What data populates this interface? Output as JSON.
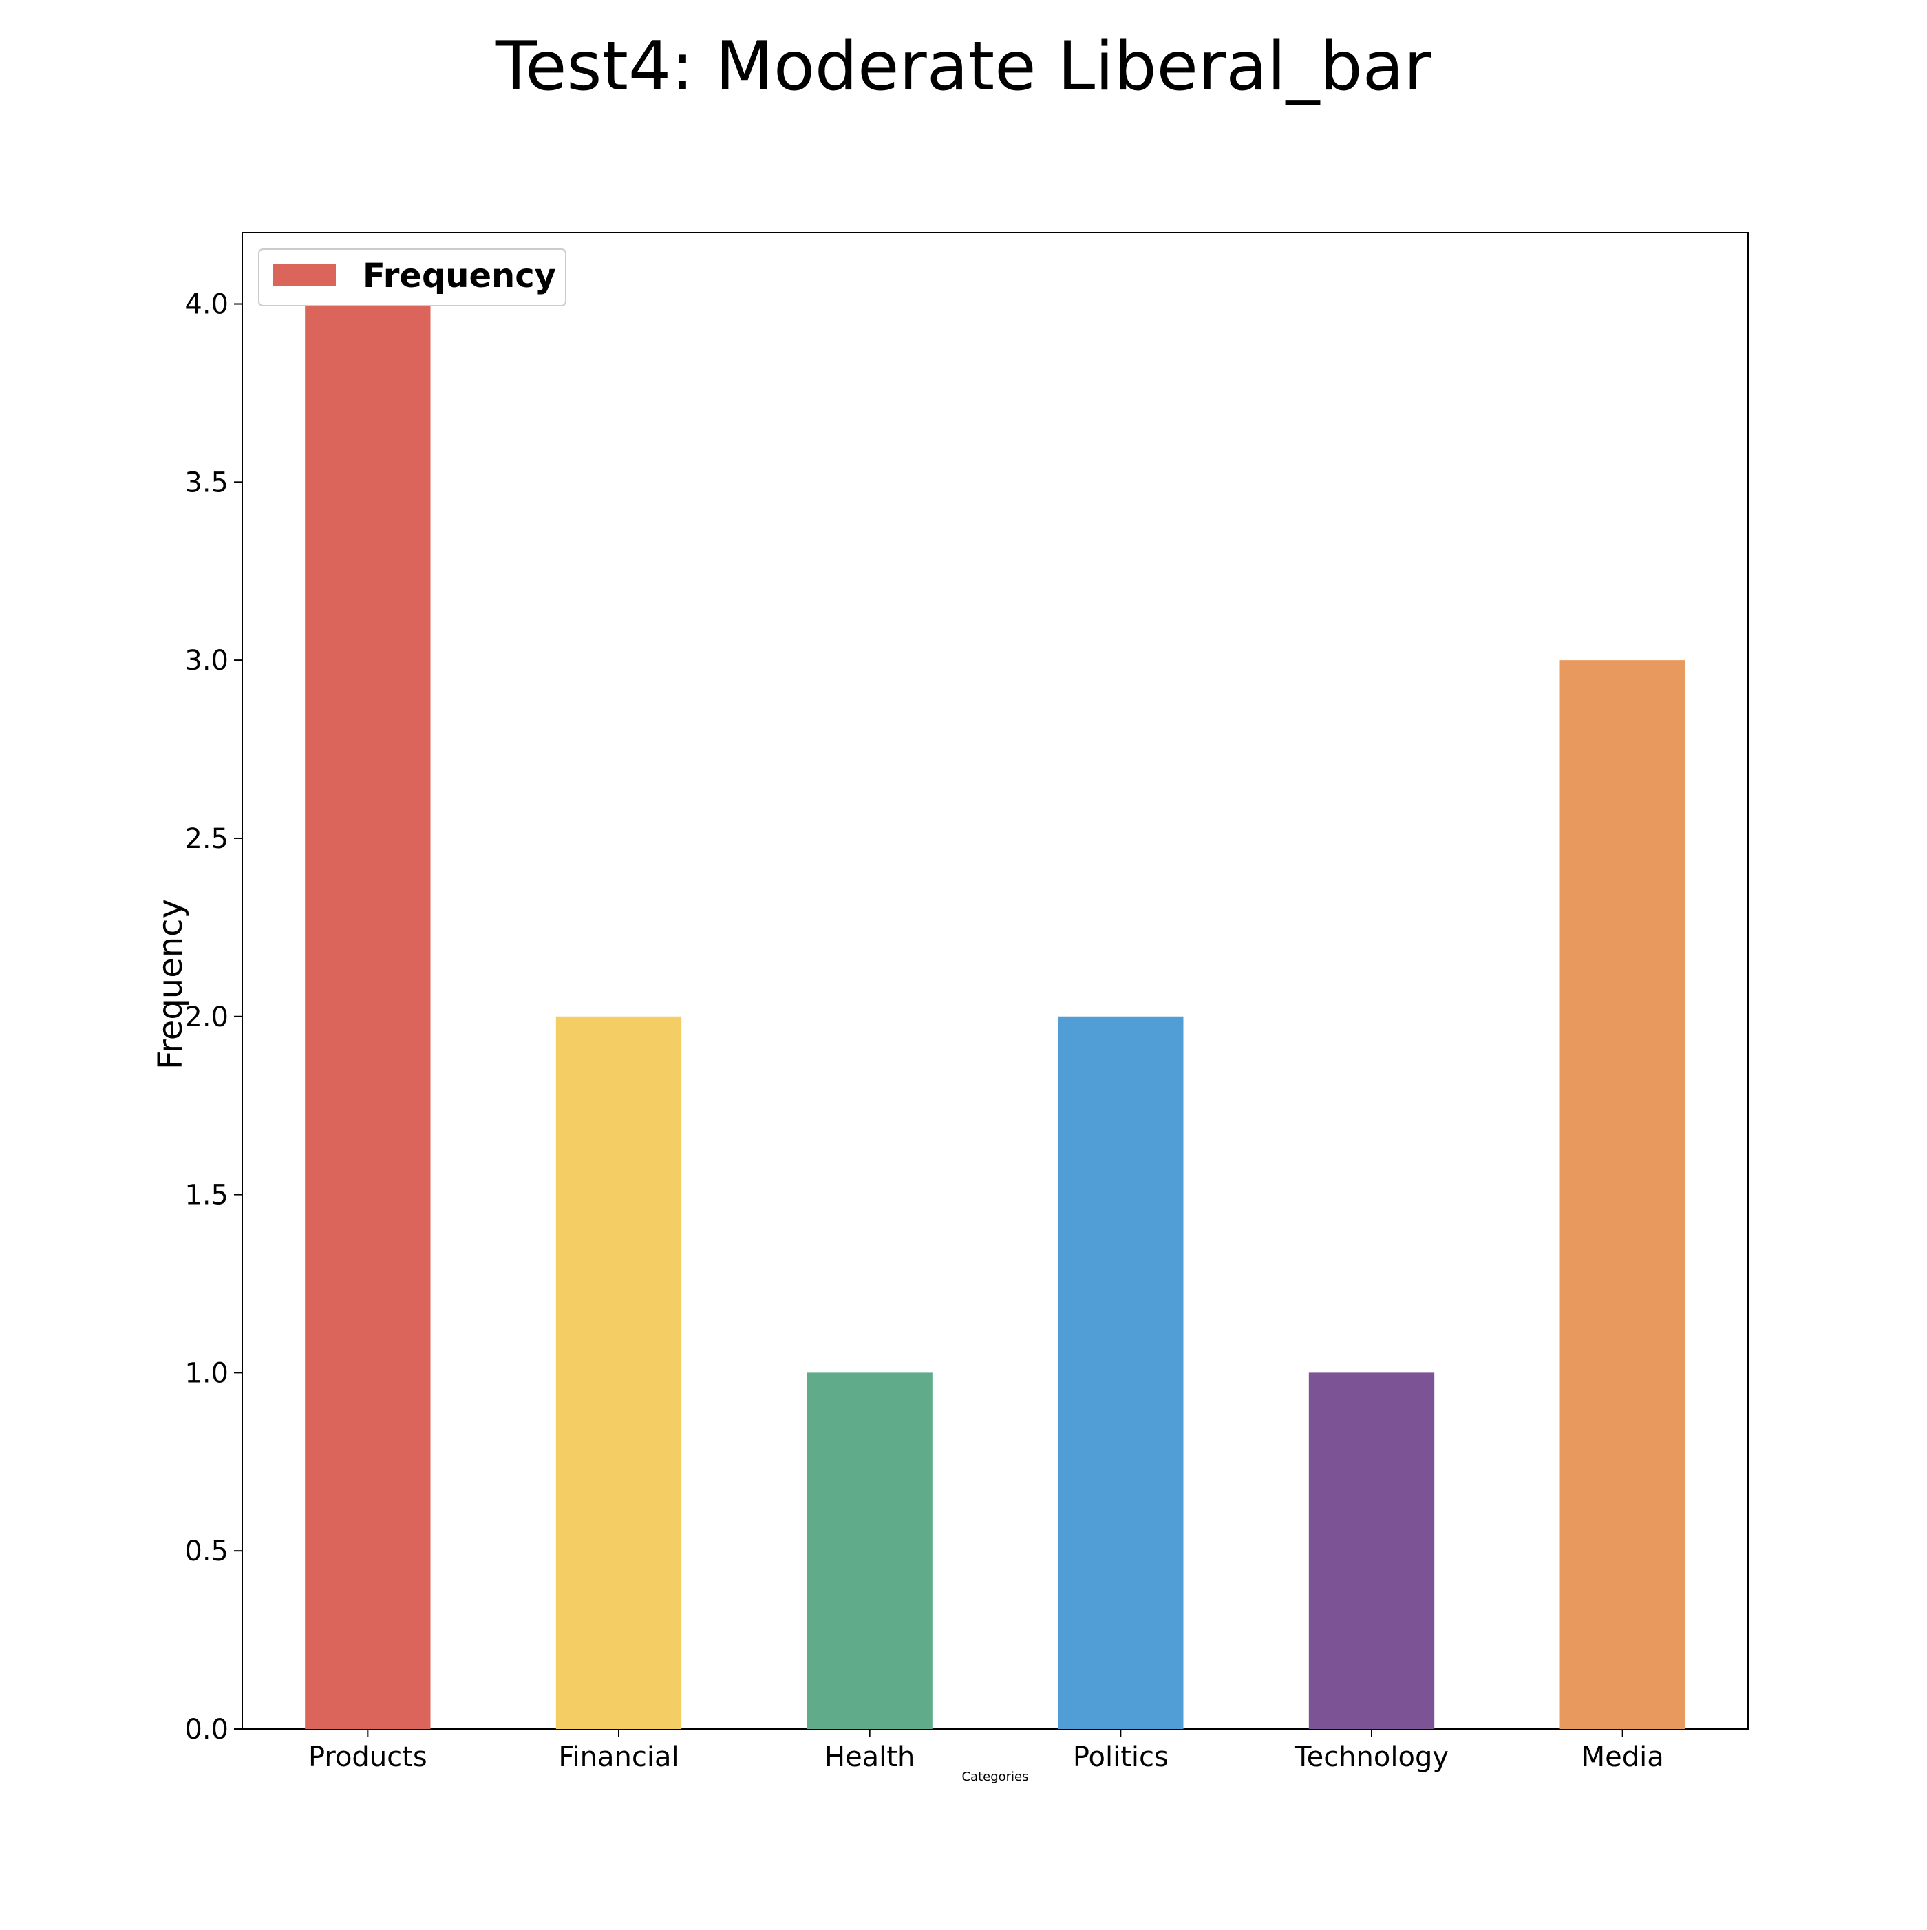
{
  "chart_data": {
    "type": "bar",
    "title": "Test4: Moderate Liberal_bar",
    "xlabel": "Categories",
    "ylabel": "Frequency",
    "categories": [
      "Products",
      "Financial",
      "Health",
      "Politics",
      "Technology",
      "Media"
    ],
    "series": [
      {
        "name": "Frequency",
        "values": [
          4,
          2,
          1,
          2,
          1,
          3
        ],
        "colors": [
          "#db655a",
          "#f4ce65",
          "#60ac8a",
          "#519ed6",
          "#7c5395",
          "#e8995d"
        ]
      }
    ],
    "ylim": [
      0,
      4.2
    ],
    "yticks": [
      "0.0",
      "0.5",
      "1.0",
      "1.5",
      "2.0",
      "2.5",
      "3.0",
      "3.5",
      "4.0"
    ],
    "grid": false,
    "legend": {
      "position": "upper-left",
      "label": "Frequency",
      "swatch_color": "#db655a"
    }
  }
}
